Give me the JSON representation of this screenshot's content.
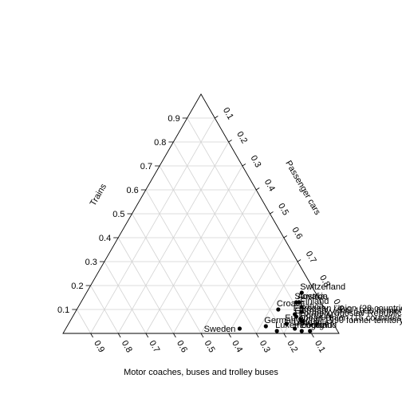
{
  "chart_data": {
    "type": "scatter",
    "subtype": "ternary",
    "axes": {
      "left": {
        "label": "Trains",
        "ticks": [
          "0.1",
          "0.2",
          "0.3",
          "0.4",
          "0.5",
          "0.6",
          "0.7",
          "0.8",
          "0.9"
        ]
      },
      "right": {
        "label": "Passenger cars",
        "ticks": [
          "0.1",
          "0.2",
          "0.3",
          "0.4",
          "0.5",
          "0.6",
          "0.7",
          "0.8",
          "0.9"
        ]
      },
      "bottom": {
        "label": "Motor coaches, buses and trolley buses",
        "ticks": [
          "0.1",
          "0.2",
          "0.3",
          "0.4",
          "0.5",
          "0.6",
          "0.7",
          "0.8",
          "0.9"
        ]
      }
    },
    "grid": true,
    "point_color": "#000000",
    "points": [
      {
        "label": "Switzerland",
        "trains": 0.17,
        "cars": 0.78,
        "buses": 0.05
      },
      {
        "label": "Austria",
        "trains": 0.13,
        "cars": 0.79,
        "buses": 0.08
      },
      {
        "label": "Slovakia",
        "trains": 0.13,
        "cars": 0.78,
        "buses": 0.09
      },
      {
        "label": "Finland",
        "trains": 0.11,
        "cars": 0.81,
        "buses": 0.08
      },
      {
        "label": "Latvia",
        "trains": 0.09,
        "cars": 0.82,
        "buses": 0.09
      },
      {
        "label": "Croatia",
        "trains": 0.1,
        "cars": 0.73,
        "buses": 0.17
      },
      {
        "label": "European Union (28 countries)",
        "trains": 0.08,
        "cars": 0.8,
        "buses": 0.12
      },
      {
        "label": "Germany (until 1990 former territory of the FRG)",
        "trains": 0.07,
        "cars": 0.81,
        "buses": 0.12
      },
      {
        "label": "Former Yugoslav Republic",
        "trains": 0.06,
        "cars": 0.83,
        "buses": 0.11
      },
      {
        "label": "Portugal",
        "trains": 0.05,
        "cars": 0.84,
        "buses": 0.11
      },
      {
        "label": "Germany (until 1990 former territory of the FRG)",
        "trains": 0.03,
        "cars": 0.72,
        "buses": 0.25
      },
      {
        "label": "European Union (15 countries)",
        "trains": 0.04,
        "cars": 0.79,
        "buses": 0.17
      },
      {
        "label": "Sweden",
        "trains": 0.02,
        "cars": 0.63,
        "buses": 0.35
      },
      {
        "label": "Lithuania",
        "trains": 0.02,
        "cars": 0.83,
        "buses": 0.15
      },
      {
        "label": "Luxembourg",
        "trains": 0.01,
        "cars": 0.77,
        "buses": 0.22
      },
      {
        "label": "Iceland",
        "trains": 0.01,
        "cars": 0.89,
        "buses": 0.1
      },
      {
        "label": "England",
        "trains": 0.01,
        "cars": 0.86,
        "buses": 0.13
      }
    ]
  }
}
